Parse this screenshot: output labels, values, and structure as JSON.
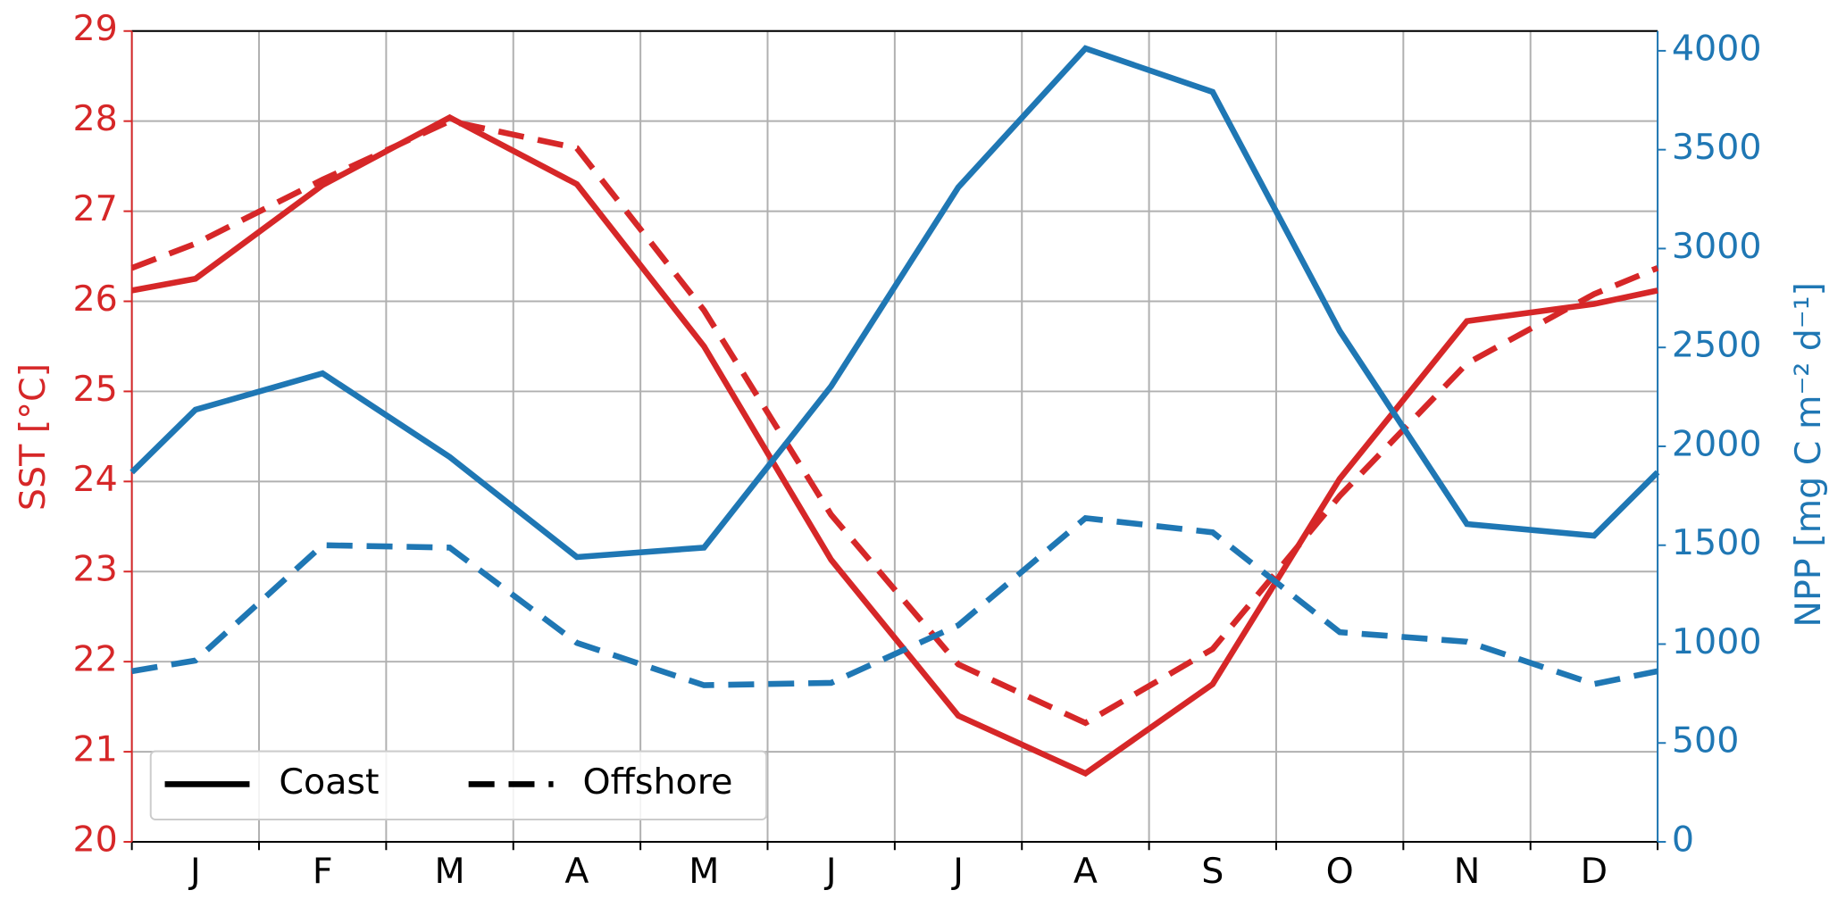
{
  "chart_data": {
    "type": "line",
    "x": [
      0,
      0.5,
      1.5,
      2.5,
      3.5,
      4.5,
      5.5,
      6.5,
      7.5,
      8.5,
      9.5,
      10.5,
      11.5,
      12
    ],
    "categories": [
      "J",
      "F",
      "M",
      "A",
      "M",
      "J",
      "J",
      "A",
      "S",
      "O",
      "N",
      "D"
    ],
    "xlim": [
      0,
      12
    ],
    "xticks": [
      0,
      1,
      2,
      3,
      4,
      5,
      6,
      7,
      8,
      9,
      10,
      11,
      12
    ],
    "ylabel": "SST [°C]",
    "y2label": "NPP [mg C m⁻² d⁻¹]",
    "ylim": [
      20,
      29
    ],
    "yticks": [
      20,
      21,
      22,
      23,
      24,
      25,
      26,
      27,
      28,
      29
    ],
    "y2lim": [
      0,
      4100
    ],
    "y2ticks": [
      0,
      500,
      1000,
      1500,
      2000,
      2500,
      3000,
      3500,
      4000
    ],
    "ycolor": "#d62728",
    "y2color": "#1f77b4",
    "grid": true,
    "legend_position": "lower left",
    "legend": [
      {
        "name": "Coast",
        "style": "solid"
      },
      {
        "name": "Offshore",
        "style": "dashed"
      }
    ],
    "series": [
      {
        "style": "solid",
        "color": "#d62728",
        "values": [
          26.12,
          26.25,
          27.29,
          28.04,
          27.3,
          25.5,
          23.13,
          21.4,
          20.76,
          21.75,
          24.03,
          25.78,
          25.97,
          26.12
        ]
      },
      {
        "style": "dashed",
        "color": "#d62728",
        "values": [
          26.37,
          26.64,
          27.35,
          28.0,
          27.7,
          25.9,
          23.63,
          21.97,
          21.32,
          22.14,
          23.84,
          25.31,
          26.08,
          26.37
        ]
      },
      {
        "style": "solid",
        "color": "#1f77b4",
        "axis": "y2",
        "values": [
          1869,
          2185,
          2369,
          1946,
          1440,
          1488,
          2304,
          3310,
          4012,
          3792,
          2583,
          1607,
          1548,
          1869
        ]
      },
      {
        "style": "dashed",
        "color": "#1f77b4",
        "axis": "y2",
        "values": [
          863,
          917,
          1500,
          1488,
          1006,
          792,
          804,
          1095,
          1637,
          1565,
          1060,
          1012,
          798,
          863
        ]
      }
    ]
  }
}
